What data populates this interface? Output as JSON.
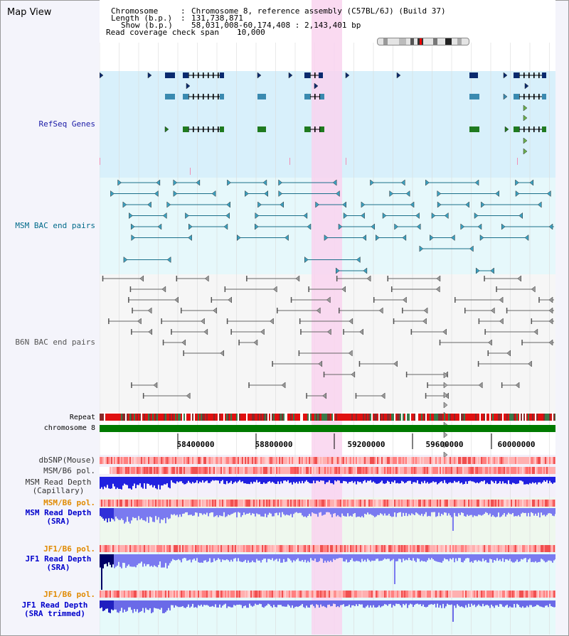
{
  "app": {
    "title": "Map View"
  },
  "header": {
    "chromosome_label": "Chromosome",
    "chromosome_value": "Chromosome 8, reference assembly (C57BL/6J) (Build 37)",
    "length_label": "Length (b.p.)",
    "length_value": "131,738,871",
    "show_label": "Show (b.p.)",
    "show_value": "58,031,008-60,174,408 : 2,143,401 bp",
    "span_label": "Read coverage check span",
    "span_value": "10,000"
  },
  "tracks": {
    "refseq": "RefSeq Genes",
    "msm_bac": "MSM BAC end pairs",
    "b6n_bac": "B6N BAC end pairs",
    "repeat": "Repeat",
    "chromosome": "chromosome 8",
    "dbsnp": "dbSNP(Mouse)",
    "msm_b6_pol": "MSM/B6 pol.",
    "msm_depth_cap_1": "MSM Read Depth",
    "msm_depth_cap_2": "(Capillary)",
    "msm_b6_pol_2": "MSM/B6 pol.",
    "msm_depth_sra_1": "MSM Read Depth",
    "msm_depth_sra_2": "(SRA)",
    "jf1_b6_pol": "JF1/B6 pol.",
    "jf1_depth_sra_1": "JF1 Read Depth",
    "jf1_depth_sra_2": "(SRA)",
    "jf1_b6_pol_2": "JF1/B6 pol.",
    "jf1_depth_trim_1": "JF1 Read Depth",
    "jf1_depth_trim_2": "(SRA trimmed)"
  },
  "ruler": {
    "ticks": [
      "58400000",
      "58800000",
      "59200000",
      "59600000",
      "60000000"
    ]
  },
  "colors": {
    "refseq_label": "#1a1aa6",
    "msm_bac_label": "#006a8a",
    "b6n_bac_label": "#555555",
    "pol_label_orange": "#e08a00",
    "depth_label_blue": "#0000cc",
    "highlight": "#fbdcf2",
    "chromosome_bar": "#007a00"
  }
}
